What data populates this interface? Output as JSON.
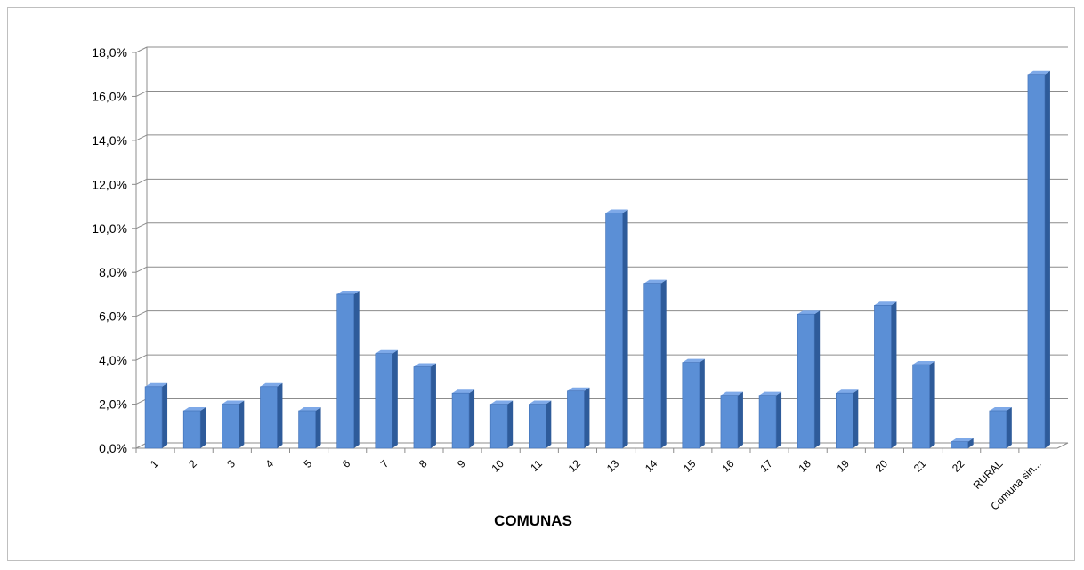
{
  "chart_data": {
    "type": "bar",
    "style": "3d-column",
    "title": "",
    "xlabel": "COMUNAS",
    "ylabel": "",
    "categories": [
      "1",
      "2",
      "3",
      "4",
      "5",
      "6",
      "7",
      "8",
      "9",
      "10",
      "11",
      "12",
      "13",
      "14",
      "15",
      "16",
      "17",
      "18",
      "19",
      "20",
      "21",
      "22",
      "RURAL",
      "Comuna sin..."
    ],
    "values": [
      2.8,
      1.7,
      2.0,
      2.8,
      1.7,
      7.0,
      4.3,
      3.7,
      2.5,
      2.0,
      2.0,
      2.6,
      10.7,
      7.5,
      3.9,
      2.4,
      2.4,
      6.1,
      2.5,
      6.5,
      3.8,
      0.3,
      1.7,
      17.0
    ],
    "ylim": [
      0,
      18
    ],
    "yticks": [
      "0,0%",
      "2,0%",
      "4,0%",
      "6,0%",
      "8,0%",
      "10,0%",
      "12,0%",
      "14,0%",
      "16,0%",
      "18,0%"
    ],
    "grid": true,
    "legend": "none",
    "colors": {
      "bar_front": "#5b8fd6",
      "bar_side": "#2e5b9a",
      "bar_top": "#7ea9e8",
      "grid": "#8c8c8c"
    }
  }
}
